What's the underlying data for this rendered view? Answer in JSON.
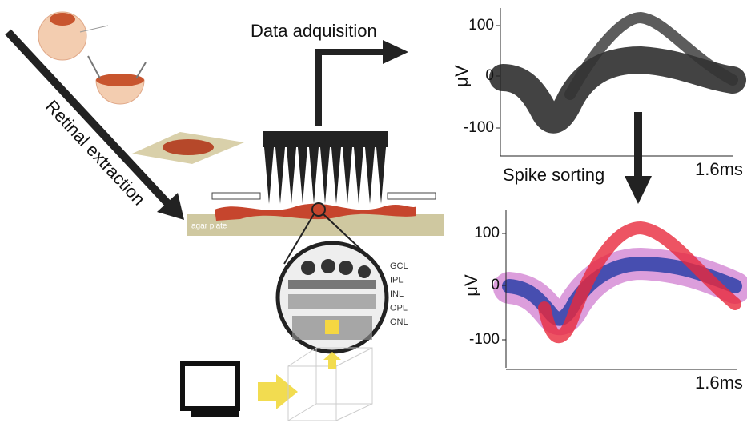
{
  "extraction": {
    "label": "Retinal extraction"
  },
  "acquisition": {
    "label": "Data adquisition"
  },
  "agar": {
    "label": "agar plate"
  },
  "layers": [
    "GCL",
    "IPL",
    "INL",
    "OPL",
    "ONL"
  ],
  "raw_plot": {
    "y_label": "μV",
    "y_ticks": [
      "100",
      "0",
      "-100"
    ],
    "x_label": "1.6ms"
  },
  "sorting": {
    "label": "Spike sorting"
  },
  "sorted_plot": {
    "y_label": "μV",
    "y_ticks": [
      "100",
      "0",
      "-100"
    ],
    "x_label": "1.6ms"
  }
}
